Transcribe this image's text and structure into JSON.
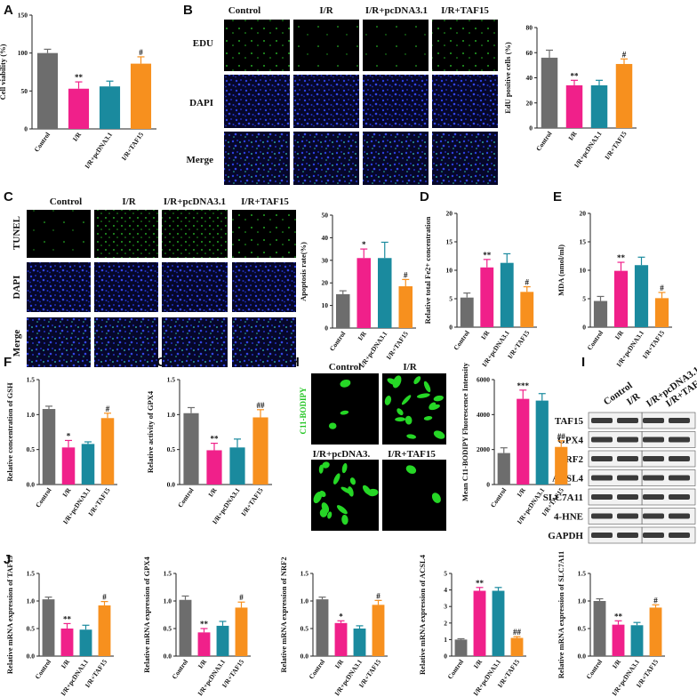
{
  "colors": {
    "control": "#6d6d6d",
    "ir": "#f0208a",
    "pcdna": "#1a8a9e",
    "taf15": "#f7901e",
    "edu_green": "#2ed52e",
    "dapi_blue": "#1f2fc8",
    "bodipy_green": "#26d726"
  },
  "panels": {
    "A": {
      "label": "A"
    },
    "B": {
      "label": "B",
      "columns": [
        "Control",
        "I/R",
        "I/R+pcDNA3.1",
        "I/R+TAF15"
      ],
      "rows": [
        "EDU",
        "DAPI",
        "Merge"
      ]
    },
    "C": {
      "label": "C",
      "columns": [
        "Control",
        "I/R",
        "I/R+pcDNA3.1",
        "I/R+TAF15"
      ],
      "rows": [
        "TUNEL",
        "DAPI",
        "Merge"
      ]
    },
    "D": {
      "label": "D"
    },
    "E": {
      "label": "E"
    },
    "F": {
      "label": "F"
    },
    "G": {
      "label": "G"
    },
    "H": {
      "label": "H",
      "stain": "C11-BODIPY",
      "headers_top": [
        "Control",
        "I/R"
      ],
      "headers_bottom": [
        "I/R+pcDNA3.",
        "I/R+TAF15"
      ]
    },
    "I": {
      "label": "I",
      "columns": [
        "Control",
        "I/R",
        "I/R+pcDNA3.1",
        "I/R+TAF15"
      ],
      "proteins": [
        "TAF15",
        "GPX4",
        "NRF2",
        "ACSL4",
        "SLC7A11",
        "4-HNE",
        "GAPDH"
      ]
    },
    "J": {
      "label": "J"
    }
  },
  "chart_data": [
    {
      "id": "A",
      "type": "bar",
      "categories": [
        "Control",
        "I/R",
        "I/R+pcDNA3.1",
        "I/R+TAF15"
      ],
      "values": [
        100,
        53,
        56,
        86
      ],
      "errors": [
        5,
        9,
        7,
        9
      ],
      "significance": [
        "",
        "**",
        "",
        "#"
      ],
      "ylabel": "Cell viability (%)",
      "ylim": [
        0,
        150
      ],
      "yticks": [
        0,
        50,
        100,
        150
      ]
    },
    {
      "id": "B",
      "type": "bar",
      "categories": [
        "Control",
        "I/R",
        "I/R+pcDNA3.1",
        "I/R+TAF15"
      ],
      "values": [
        56,
        34,
        34,
        51
      ],
      "errors": [
        6,
        4,
        4,
        4
      ],
      "significance": [
        "",
        "**",
        "",
        "#"
      ],
      "ylabel": "EdU positive cells (%)",
      "ylim": [
        0,
        80
      ],
      "yticks": [
        0,
        20,
        40,
        60,
        80
      ]
    },
    {
      "id": "C",
      "type": "bar",
      "categories": [
        "Control",
        "I/R",
        "I/R+pcDNA3.1",
        "I/R+TAF15"
      ],
      "values": [
        15,
        31,
        31,
        18.5
      ],
      "errors": [
        1.5,
        4,
        7,
        3
      ],
      "significance": [
        "",
        "*",
        "",
        "#"
      ],
      "ylabel": "Apoptosis rate(%)",
      "ylim": [
        0,
        50
      ],
      "yticks": [
        0,
        10,
        20,
        30,
        40,
        50
      ]
    },
    {
      "id": "D",
      "type": "bar",
      "categories": [
        "Control",
        "I/R",
        "I/R+pcDNA3.1",
        "I/R+TAF15"
      ],
      "values": [
        5.2,
        10.5,
        11.3,
        6.2
      ],
      "errors": [
        0.8,
        1.4,
        1.6,
        0.9
      ],
      "significance": [
        "",
        "**",
        "",
        "#"
      ],
      "ylabel": "Relative total Fe2+ concentration",
      "ylim": [
        0,
        20
      ],
      "yticks": [
        0,
        5,
        10,
        15,
        20
      ]
    },
    {
      "id": "E",
      "type": "bar",
      "categories": [
        "Control",
        "I/R",
        "I/R+pcDNA3.1",
        "I/R+TAF15"
      ],
      "values": [
        4.6,
        9.9,
        10.9,
        5.1
      ],
      "errors": [
        0.8,
        1.5,
        1.4,
        1.0
      ],
      "significance": [
        "",
        "**",
        "",
        "#"
      ],
      "ylabel": "MDA (nmol/ml)",
      "ylim": [
        0,
        20
      ],
      "yticks": [
        0,
        5,
        10,
        15,
        20
      ]
    },
    {
      "id": "F",
      "type": "bar",
      "categories": [
        "Control",
        "I/R",
        "I/R+pcDNA3.1",
        "I/R+TAF15"
      ],
      "values": [
        1.08,
        0.53,
        0.58,
        0.95
      ],
      "errors": [
        0.04,
        0.1,
        0.03,
        0.07
      ],
      "significance": [
        "",
        "*",
        "",
        "#"
      ],
      "ylabel": "Relative concentration of GSH",
      "ylim": [
        0,
        1.5
      ],
      "yticks": [
        0,
        0.5,
        1.0,
        1.5
      ]
    },
    {
      "id": "G",
      "type": "bar",
      "categories": [
        "Control",
        "I/R",
        "I/R+pcDNA3.1",
        "I/R+TAF15"
      ],
      "values": [
        1.02,
        0.49,
        0.53,
        0.96
      ],
      "errors": [
        0.08,
        0.1,
        0.12,
        0.11
      ],
      "significance": [
        "",
        "**",
        "",
        "##"
      ],
      "ylabel": "Relative activity of GPX4",
      "ylim": [
        0,
        1.5
      ],
      "yticks": [
        0,
        0.5,
        1.0,
        1.5
      ]
    },
    {
      "id": "H",
      "type": "bar",
      "categories": [
        "Control",
        "I/R",
        "I/R+pcDNA3.1",
        "I/R+TAF15"
      ],
      "values": [
        1800,
        4900,
        4800,
        2150
      ],
      "errors": [
        300,
        500,
        400,
        350
      ],
      "significance": [
        "",
        "***",
        "",
        "##"
      ],
      "ylabel": "Mean C11-BODIPY Fluorescence Intensity",
      "ylim": [
        0,
        6000
      ],
      "yticks": [
        0,
        2000,
        4000,
        6000
      ]
    },
    {
      "id": "J1",
      "type": "bar",
      "categories": [
        "Control",
        "I/R",
        "I/R+pcDNA3.1",
        "I/R+TAF15"
      ],
      "values": [
        1.03,
        0.5,
        0.48,
        0.92
      ],
      "errors": [
        0.04,
        0.09,
        0.08,
        0.07
      ],
      "significance": [
        "",
        "**",
        "",
        "#"
      ],
      "ylabel": "Relative mRNA expression of TAF15",
      "ylim": [
        0,
        1.5
      ],
      "yticks": [
        0,
        0.5,
        1.0,
        1.5
      ]
    },
    {
      "id": "J2",
      "type": "bar",
      "categories": [
        "Control",
        "I/R",
        "I/R+pcDNA3.1",
        "I/R+TAF15"
      ],
      "values": [
        1.02,
        0.43,
        0.55,
        0.88
      ],
      "errors": [
        0.07,
        0.07,
        0.08,
        0.1
      ],
      "significance": [
        "",
        "**",
        "",
        "#"
      ],
      "ylabel": "Relative mRNA expression of GPX4",
      "ylim": [
        0,
        1.5
      ],
      "yticks": [
        0,
        0.5,
        1.0,
        1.5
      ]
    },
    {
      "id": "J3",
      "type": "bar",
      "categories": [
        "Control",
        "I/R",
        "I/R+pcDNA3.1",
        "I/R+TAF15"
      ],
      "values": [
        1.03,
        0.6,
        0.5,
        0.93
      ],
      "errors": [
        0.04,
        0.04,
        0.05,
        0.08
      ],
      "significance": [
        "",
        "*",
        "",
        "#"
      ],
      "ylabel": "Relative mRNA expression of NRF2",
      "ylim": [
        0,
        1.5
      ],
      "yticks": [
        0,
        0.5,
        1.0,
        1.5
      ]
    },
    {
      "id": "J4",
      "type": "bar",
      "categories": [
        "Control",
        "I/R",
        "I/R+pcDNA3.1",
        "I/R+TAF15"
      ],
      "values": [
        1.0,
        3.95,
        3.95,
        1.1
      ],
      "errors": [
        0.05,
        0.2,
        0.2,
        0.08
      ],
      "significance": [
        "",
        "**",
        "",
        "##"
      ],
      "ylabel": "Relative mRNA expression of ACSL4",
      "ylim": [
        0,
        5
      ],
      "yticks": [
        0,
        1,
        2,
        3,
        4,
        5
      ]
    },
    {
      "id": "J5",
      "type": "bar",
      "categories": [
        "Control",
        "I/R",
        "I/R+pcDNA3.1",
        "I/R+TAF15"
      ],
      "values": [
        1.0,
        0.57,
        0.56,
        0.88
      ],
      "errors": [
        0.04,
        0.07,
        0.05,
        0.05
      ],
      "significance": [
        "",
        "**",
        "",
        "#"
      ],
      "ylabel": "Relative mRNA expression of SLC7A11",
      "ylim": [
        0,
        1.5
      ],
      "yticks": [
        0,
        0.5,
        1.0,
        1.5
      ]
    }
  ]
}
